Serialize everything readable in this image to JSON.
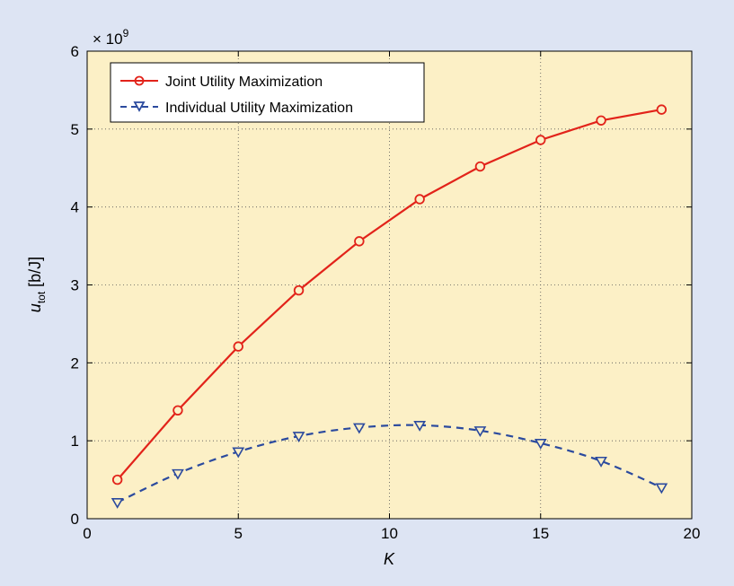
{
  "chart_data": {
    "type": "line",
    "xlabel": "K",
    "ylabel": "u",
    "ylabel_subscript": "tot",
    "ylabel_unit": " [b/J]",
    "y_multiplier_base": "× 10",
    "y_multiplier_exp": "9",
    "xlim": [
      0,
      20
    ],
    "ylim": [
      0,
      6
    ],
    "xticks": [
      0,
      5,
      10,
      15,
      20
    ],
    "yticks": [
      0,
      1,
      2,
      3,
      4,
      5,
      6
    ],
    "grid": true,
    "legend_position": "top-left",
    "x": [
      1,
      3,
      5,
      7,
      9,
      11,
      13,
      15,
      17,
      19
    ],
    "series": [
      {
        "name": "Joint Utility Maximization",
        "values": [
          0.5,
          1.39,
          2.21,
          2.93,
          3.56,
          4.1,
          4.52,
          4.86,
          5.11,
          5.25
        ],
        "color": "#e2231a",
        "line_style": "solid",
        "marker": "circle"
      },
      {
        "name": "Individual Utility Maximization",
        "values": [
          0.21,
          0.58,
          0.86,
          1.06,
          1.17,
          1.2,
          1.13,
          0.97,
          0.74,
          0.4
        ],
        "color": "#2b4a9e",
        "line_style": "dashed",
        "marker": "triangle-down"
      }
    ]
  },
  "colors": {
    "page_background": "#dde4f3",
    "plot_background": "#fcf0c6"
  }
}
